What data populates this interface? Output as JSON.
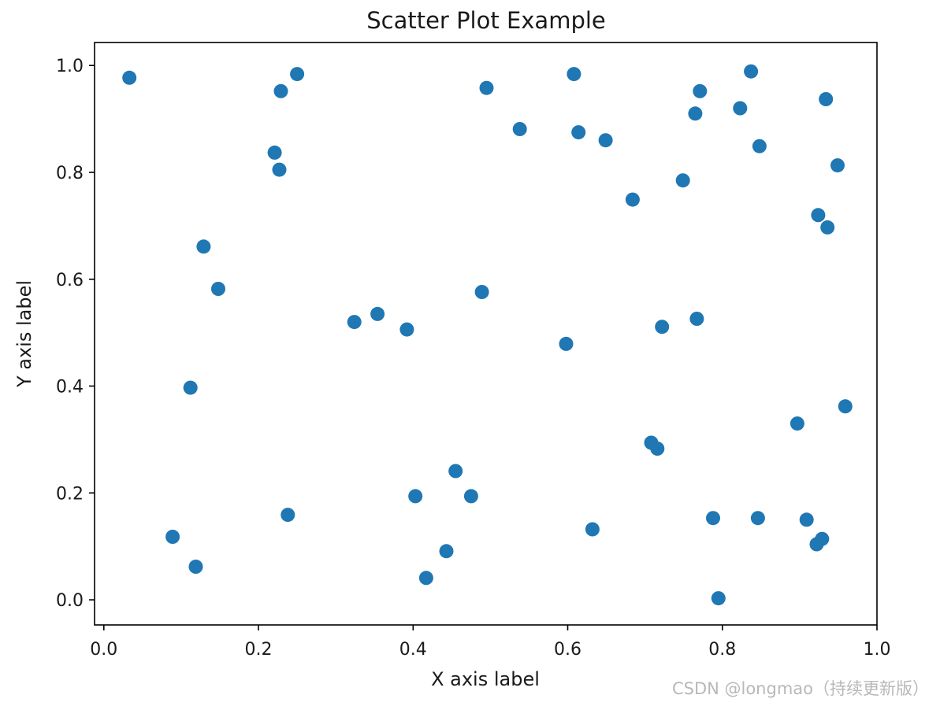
{
  "chart_data": {
    "type": "scatter",
    "title": "Scatter Plot Example",
    "xlabel": "X axis label",
    "ylabel": "Y axis label",
    "xlim": [
      -0.012,
      1.0
    ],
    "ylim": [
      -0.047,
      1.043
    ],
    "grid": false,
    "marker_color": "#1f77b4",
    "x_ticks": [
      "0.0",
      "0.2",
      "0.4",
      "0.6",
      "0.8",
      "1.0"
    ],
    "y_ticks": [
      "0.0",
      "0.2",
      "0.4",
      "0.6",
      "0.8",
      "1.0"
    ],
    "x": [
      0.033,
      0.089,
      0.112,
      0.119,
      0.129,
      0.148,
      0.221,
      0.227,
      0.229,
      0.238,
      0.25,
      0.324,
      0.354,
      0.392,
      0.403,
      0.417,
      0.443,
      0.455,
      0.475,
      0.489,
      0.495,
      0.538,
      0.598,
      0.608,
      0.614,
      0.632,
      0.649,
      0.684,
      0.708,
      0.716,
      0.722,
      0.749,
      0.765,
      0.767,
      0.771,
      0.788,
      0.795,
      0.823,
      0.837,
      0.846,
      0.848,
      0.897,
      0.909,
      0.922,
      0.924,
      0.929,
      0.934,
      0.936,
      0.949,
      0.959
    ],
    "y": [
      0.977,
      0.118,
      0.397,
      0.062,
      0.661,
      0.582,
      0.837,
      0.805,
      0.952,
      0.159,
      0.984,
      0.52,
      0.535,
      0.506,
      0.194,
      0.041,
      0.091,
      0.241,
      0.194,
      0.576,
      0.958,
      0.881,
      0.479,
      0.984,
      0.875,
      0.132,
      0.86,
      0.749,
      0.294,
      0.283,
      0.511,
      0.785,
      0.91,
      0.526,
      0.952,
      0.153,
      0.003,
      0.92,
      0.989,
      0.153,
      0.849,
      0.33,
      0.15,
      0.104,
      0.72,
      0.114,
      0.937,
      0.697,
      0.813,
      0.362
    ]
  },
  "watermark": "CSDN @longmao（持续更新版）"
}
